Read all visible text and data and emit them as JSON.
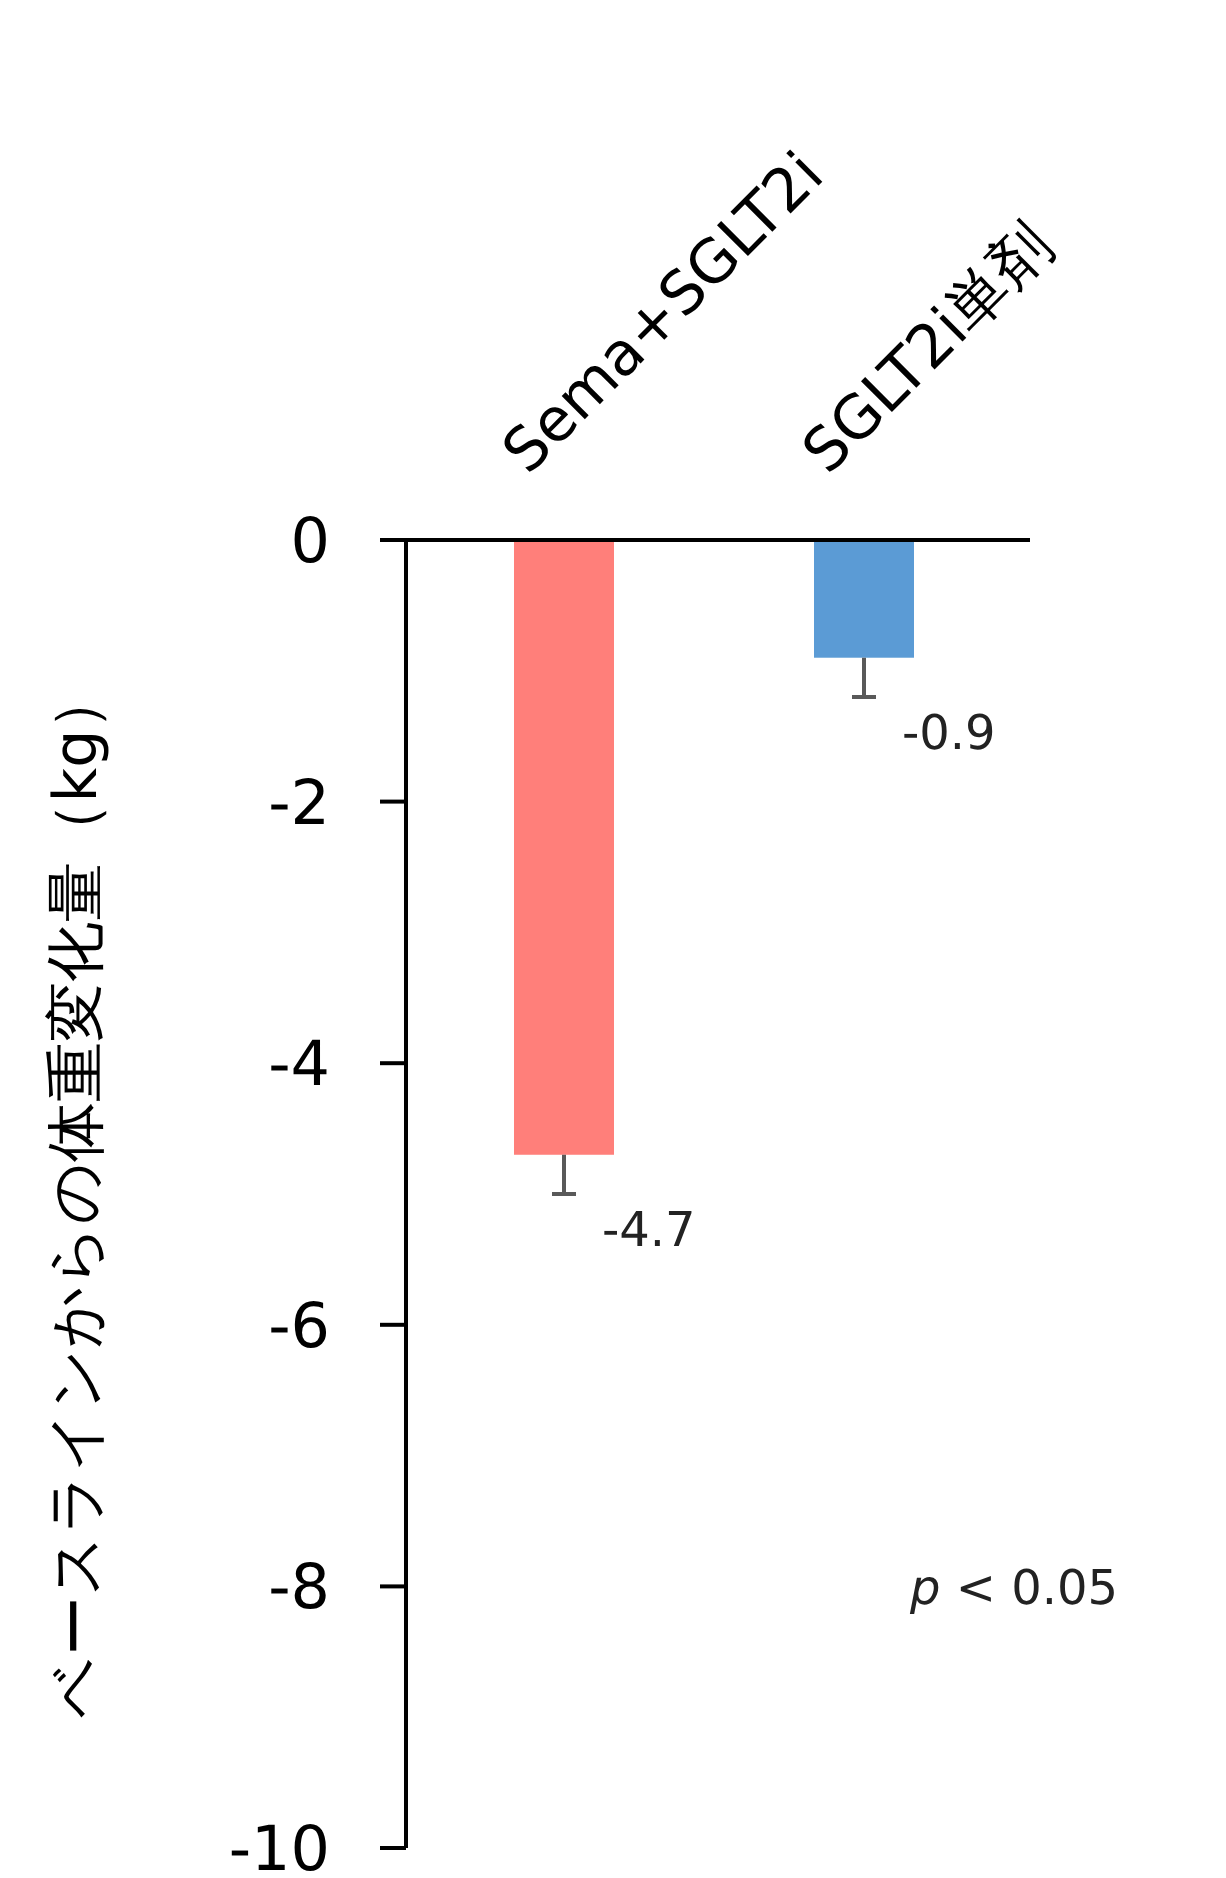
{
  "chart_data": {
    "type": "bar",
    "ylabel": "ベースラインからの体重変化量（kg）",
    "categories": [
      "Sema+SGLT2i",
      "SGLT2i単剤"
    ],
    "values": [
      -4.7,
      -0.9
    ],
    "colors": [
      "#ff7f7a",
      "#5b9bd5"
    ],
    "errors": [
      0.3,
      0.3
    ],
    "data_labels": true,
    "ylim": [
      -10,
      0
    ],
    "yticks": [
      0,
      -2,
      -4,
      -6,
      -8,
      -10
    ],
    "grid": false,
    "annotations": [
      "*p* < 0.05"
    ]
  }
}
